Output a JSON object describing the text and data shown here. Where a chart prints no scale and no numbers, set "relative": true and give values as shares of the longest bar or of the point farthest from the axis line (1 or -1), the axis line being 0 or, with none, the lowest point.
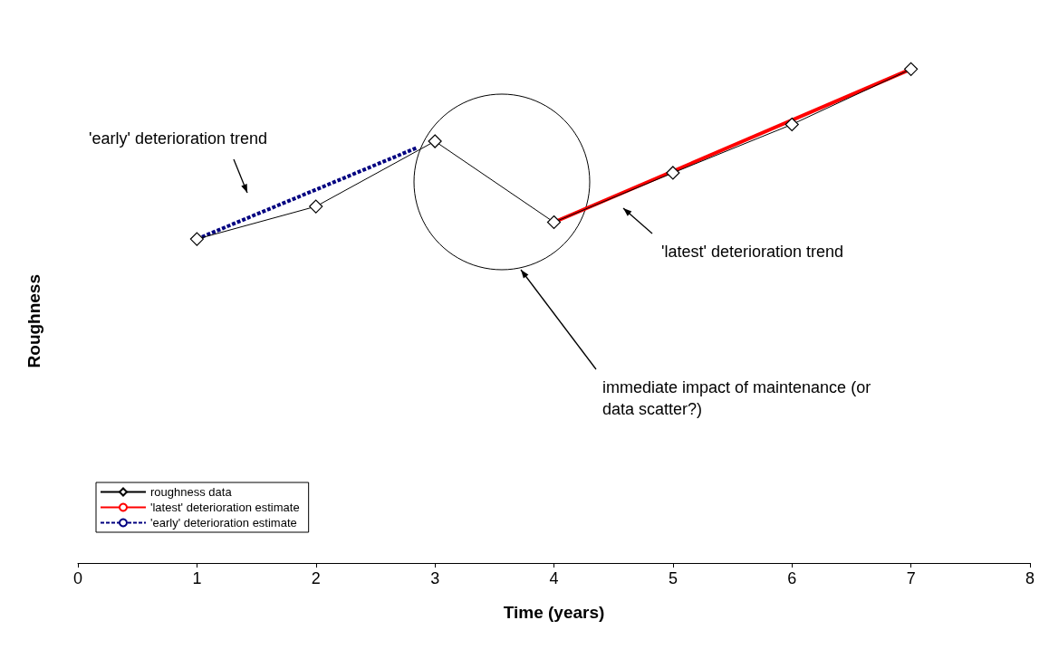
{
  "chart_data": {
    "type": "line",
    "relative": true,
    "xlabel": "Time (years)",
    "ylabel": "Roughness",
    "xlim": [
      0,
      8
    ],
    "xticks": [
      0,
      1,
      2,
      3,
      4,
      5,
      6,
      7,
      8
    ],
    "grid": false,
    "legend": "bottom left",
    "series": [
      {
        "name": "roughness data",
        "color": "#000000",
        "marker": "diamond",
        "line_style": "solid",
        "x": [
          1,
          2,
          3,
          4,
          5,
          6,
          7
        ],
        "values": [
          0.656,
          0.722,
          0.854,
          0.69,
          0.79,
          0.888,
          1
        ]
      },
      {
        "name": "'latest' deterioration estimate",
        "color": "#ff0000",
        "marker": "none",
        "line_style": "solid",
        "x": [
          4,
          7
        ],
        "values": [
          0.69,
          1
        ]
      },
      {
        "name": "'early' deterioration estimate",
        "color": "#000080",
        "marker": "none",
        "line_style": "dashed",
        "x": [
          1,
          2.85
        ],
        "values": [
          0.656,
          0.841
        ]
      }
    ],
    "annotations": [
      "'early' deterioration trend",
      "'latest' deterioration trend",
      "immediate impact of maintenance (or\ndata scatter?)"
    ]
  }
}
